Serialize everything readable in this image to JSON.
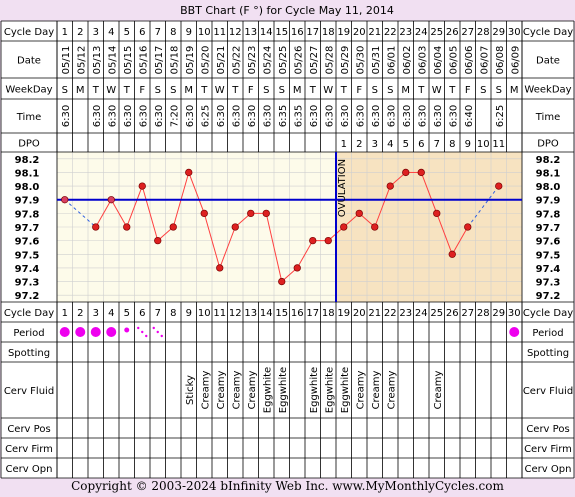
{
  "title": "BBT Chart (F °) for Cycle May 11, 2014",
  "row_labels": {
    "cycle_day": "Cycle Day",
    "date": "Date",
    "weekday": "WeekDay",
    "time": "Time",
    "dpo": "DPO",
    "period": "Period",
    "spotting": "Spotting",
    "cerv_fluid": "Cerv Fluid",
    "cerv_pos": "Cerv Pos",
    "cerv_firm": "Cerv Firm",
    "cerv_opn": "Cerv Opn"
  },
  "days": [
    "1",
    "2",
    "3",
    "4",
    "5",
    "6",
    "7",
    "8",
    "9",
    "10",
    "11",
    "12",
    "13",
    "14",
    "15",
    "16",
    "17",
    "18",
    "19",
    "20",
    "21",
    "22",
    "23",
    "24",
    "25",
    "26",
    "27",
    "28",
    "29",
    "30"
  ],
  "dates": [
    "05/11",
    "05/12",
    "05/13",
    "05/14",
    "05/15",
    "05/16",
    "05/17",
    "05/18",
    "05/19",
    "05/20",
    "05/21",
    "05/22",
    "05/23",
    "05/24",
    "05/25",
    "05/26",
    "05/27",
    "05/28",
    "05/29",
    "05/30",
    "05/31",
    "06/01",
    "06/02",
    "06/03",
    "06/04",
    "06/05",
    "06/06",
    "06/07",
    "06/08",
    "06/09"
  ],
  "weekdays": [
    "S",
    "M",
    "T",
    "W",
    "T",
    "F",
    "S",
    "S",
    "M",
    "T",
    "W",
    "T",
    "F",
    "S",
    "S",
    "M",
    "T",
    "W",
    "T",
    "F",
    "S",
    "S",
    "M",
    "T",
    "W",
    "T",
    "F",
    "S",
    "S",
    "M"
  ],
  "times": [
    "6:30",
    "",
    "6:30",
    "6:30",
    "6:30",
    "6:30",
    "6:30",
    "7:20",
    "6:30",
    "6:25",
    "6:30",
    "6:30",
    "6:30",
    "6:30",
    "6:35",
    "6:35",
    "6:30",
    "6:30",
    "6:30",
    "6:30",
    "6:30",
    "6:30",
    "6:30",
    "6:30",
    "6:30",
    "6:30",
    "6:40",
    "",
    "6:25",
    ""
  ],
  "dpo": [
    "",
    "",
    "",
    "",
    "",
    "",
    "",
    "",
    "",
    "",
    "",
    "",
    "",
    "",
    "",
    "",
    "",
    "",
    "1",
    "2",
    "3",
    "4",
    "5",
    "6",
    "7",
    "8",
    "9",
    "10",
    "11",
    ""
  ],
  "y_ticks": [
    "98.2",
    "98.1",
    "98.0",
    "97.9",
    "97.8",
    "97.7",
    "97.6",
    "97.5",
    "97.4",
    "97.3",
    "97.2"
  ],
  "ovulation_label": "OVULATION",
  "period": [
    "heavy",
    "heavy",
    "heavy",
    "heavy",
    "medium",
    "spot",
    "spot",
    "",
    "",
    "",
    "",
    "",
    "",
    "",
    "",
    "",
    "",
    "",
    "",
    "",
    "",
    "",
    "",
    "",
    "",
    "",
    "",
    "",
    "",
    "heavy"
  ],
  "cerv_fluid": [
    "",
    "",
    "",
    "",
    "",
    "",
    "",
    "",
    "Sticky",
    "Creamy",
    "Creamy",
    "Creamy",
    "Creamy",
    "Eggwhite",
    "Eggwhite",
    "",
    "Eggwhite",
    "Eggwhite",
    "Eggwhite",
    "Creamy",
    "Creamy",
    "Creamy",
    "",
    "",
    "Creamy",
    "",
    "",
    "",
    "",
    ""
  ],
  "footer": "Copyright © 2003-2024 bInfinity Web Inc.    www.MyMonthlyCycles.com",
  "colors": {
    "background": "#f1e0f2",
    "grid": "#000000",
    "pre_ov": "#fdfbea",
    "post_ov": "#f7e3c1",
    "temp_line": "#ff4040",
    "temp_point": "#dd2020",
    "coverline": "#0000cc",
    "period_dot": "#ee00ee"
  },
  "chart_data": {
    "type": "line",
    "title": "BBT Chart (F °) for Cycle May 11, 2014",
    "x": [
      1,
      2,
      3,
      4,
      5,
      6,
      7,
      8,
      9,
      10,
      11,
      12,
      13,
      14,
      15,
      16,
      17,
      18,
      19,
      20,
      21,
      22,
      23,
      24,
      25,
      26,
      27,
      28,
      29,
      30
    ],
    "series": [
      {
        "values": [
          97.9,
          null,
          97.7,
          97.9,
          97.7,
          98.0,
          97.6,
          97.7,
          98.1,
          97.8,
          97.4,
          97.7,
          97.8,
          97.8,
          97.3,
          97.4,
          97.6,
          97.6,
          97.7,
          97.8,
          97.7,
          98.0,
          98.1,
          98.1,
          97.8,
          97.5,
          97.7,
          null,
          98.0,
          null
        ]
      }
    ],
    "coverline": 97.9,
    "ovulation_day": 18,
    "ylim": [
      97.15,
      98.25
    ],
    "grid": true
  }
}
